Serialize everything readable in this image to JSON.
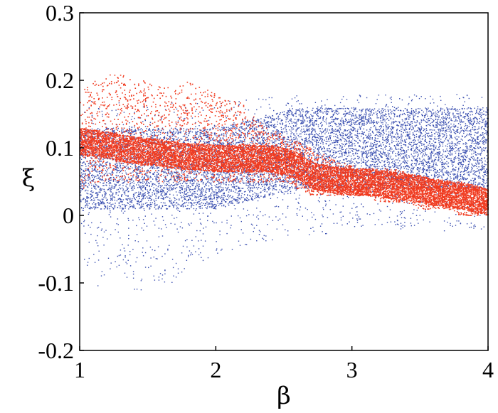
{
  "chart_data": {
    "type": "scatter",
    "title": "",
    "xlabel": "β",
    "ylabel": "ξ",
    "xlim": [
      1,
      4
    ],
    "ylim": [
      -0.2,
      0.3
    ],
    "x_ticks": [
      {
        "value": 1,
        "label": "1"
      },
      {
        "value": 2,
        "label": "2"
      },
      {
        "value": 3,
        "label": "3"
      },
      {
        "value": 4,
        "label": "4"
      }
    ],
    "y_ticks": [
      {
        "value": 0.3,
        "label": "0.3"
      },
      {
        "value": 0.2,
        "label": "0.2"
      },
      {
        "value": 0.1,
        "label": "0.1"
      },
      {
        "value": 0,
        "label": "0"
      },
      {
        "value": -0.1,
        "label": "-0.1"
      },
      {
        "value": -0.2,
        "label": "-0.2"
      }
    ],
    "grid": false,
    "legend": "none",
    "series": [
      {
        "color": "#3a4fb0",
        "x": [
          1.0,
          1.1,
          1.2,
          1.3,
          1.4,
          1.5,
          1.6,
          1.7,
          1.8,
          1.9,
          2.0,
          2.1,
          2.2,
          2.3,
          2.4,
          2.5,
          2.6,
          2.7,
          2.8,
          2.9,
          3.0,
          3.1,
          3.2,
          3.3,
          3.4,
          3.5,
          3.6,
          3.7,
          3.8,
          3.9,
          4.0
        ],
        "y_center": [
          0.07,
          0.07,
          0.07,
          0.07,
          0.07,
          0.07,
          0.07,
          0.07,
          0.07,
          0.07,
          0.07,
          0.075,
          0.08,
          0.085,
          0.09,
          0.095,
          0.1,
          0.1,
          0.1,
          0.1,
          0.1,
          0.1,
          0.1,
          0.1,
          0.1,
          0.1,
          0.1,
          0.1,
          0.1,
          0.1,
          0.1
        ],
        "y_min": [
          -0.05,
          -0.12,
          -0.08,
          -0.08,
          -0.11,
          -0.11,
          -0.1,
          -0.1,
          -0.07,
          -0.07,
          -0.06,
          -0.05,
          -0.05,
          -0.04,
          -0.04,
          -0.03,
          -0.03,
          -0.03,
          -0.03,
          -0.02,
          -0.02,
          -0.02,
          -0.02,
          -0.02,
          -0.02,
          -0.02,
          -0.03,
          -0.02,
          -0.02,
          -0.02,
          -0.02
        ],
        "y_max": [
          0.17,
          0.17,
          0.17,
          0.17,
          0.17,
          0.17,
          0.17,
          0.17,
          0.17,
          0.17,
          0.17,
          0.17,
          0.17,
          0.18,
          0.18,
          0.18,
          0.18,
          0.18,
          0.18,
          0.18,
          0.18,
          0.18,
          0.18,
          0.18,
          0.18,
          0.18,
          0.18,
          0.18,
          0.18,
          0.18,
          0.18
        ]
      },
      {
        "color": "#f03a1f",
        "x": [
          1.0,
          1.1,
          1.2,
          1.3,
          1.4,
          1.5,
          1.6,
          1.7,
          1.8,
          1.9,
          2.0,
          2.1,
          2.2,
          2.3,
          2.4,
          2.5,
          2.6,
          2.7,
          2.8,
          2.9,
          3.0,
          3.1,
          3.2,
          3.3,
          3.4,
          3.5,
          3.6,
          3.7,
          3.8,
          3.9,
          4.0
        ],
        "y_center": [
          0.11,
          0.108,
          0.105,
          0.1,
          0.097,
          0.095,
          0.093,
          0.09,
          0.088,
          0.087,
          0.085,
          0.085,
          0.085,
          0.085,
          0.085,
          0.08,
          0.075,
          0.06,
          0.055,
          0.052,
          0.05,
          0.05,
          0.048,
          0.045,
          0.042,
          0.04,
          0.035,
          0.032,
          0.03,
          0.025,
          0.02
        ],
        "y_min": [
          0.03,
          0.05,
          0.05,
          0.05,
          0.05,
          0.05,
          0.05,
          0.05,
          0.05,
          0.05,
          0.05,
          0.05,
          0.05,
          0.05,
          0.05,
          0.05,
          0.04,
          0.03,
          0.03,
          0.03,
          0.03,
          0.03,
          0.02,
          0.02,
          0.02,
          0.01,
          0.01,
          0.01,
          0.0,
          0.0,
          0.0
        ],
        "y_max": [
          0.19,
          0.2,
          0.21,
          0.21,
          0.2,
          0.2,
          0.19,
          0.19,
          0.2,
          0.19,
          0.18,
          0.17,
          0.17,
          0.14,
          0.13,
          0.12,
          0.11,
          0.1,
          0.09,
          0.08,
          0.075,
          0.07,
          0.07,
          0.07,
          0.065,
          0.06,
          0.055,
          0.05,
          0.045,
          0.04,
          0.04
        ]
      }
    ]
  }
}
